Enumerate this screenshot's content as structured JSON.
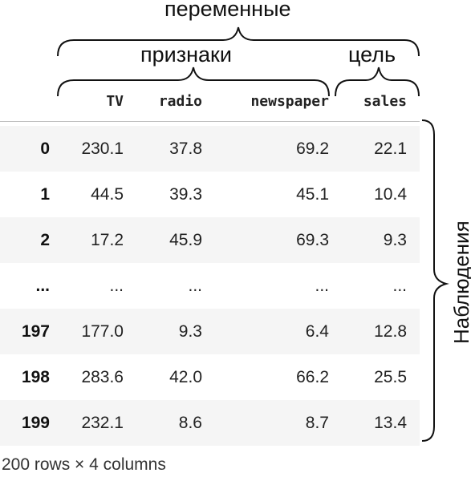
{
  "annotations": {
    "variables": "переменные",
    "features": "признаки",
    "target": "цель",
    "observations": "Наблюдения"
  },
  "columns": [
    "TV",
    "radio",
    "newspaper",
    "sales"
  ],
  "rows": [
    {
      "index": "0",
      "TV": "230.1",
      "radio": "37.8",
      "newspaper": "69.2",
      "sales": "22.1"
    },
    {
      "index": "1",
      "TV": "44.5",
      "radio": "39.3",
      "newspaper": "45.1",
      "sales": "10.4"
    },
    {
      "index": "2",
      "TV": "17.2",
      "radio": "45.9",
      "newspaper": "69.3",
      "sales": "9.3"
    },
    {
      "index": "...",
      "TV": "...",
      "radio": "...",
      "newspaper": "...",
      "sales": "..."
    },
    {
      "index": "197",
      "TV": "177.0",
      "radio": "9.3",
      "newspaper": "6.4",
      "sales": "12.8"
    },
    {
      "index": "198",
      "TV": "283.6",
      "radio": "42.0",
      "newspaper": "66.2",
      "sales": "25.5"
    },
    {
      "index": "199",
      "TV": "232.1",
      "radio": "8.6",
      "newspaper": "8.7",
      "sales": "13.4"
    }
  ],
  "footer": "200 rows × 4 columns"
}
